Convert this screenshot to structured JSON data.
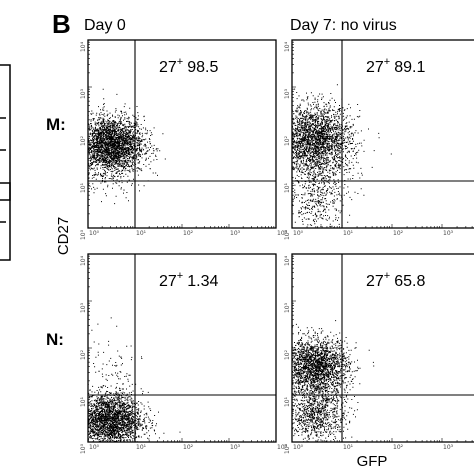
{
  "panel_label": "B",
  "column_titles": [
    "Day 0",
    "Day 7: no virus"
  ],
  "row_labels": [
    "M:",
    "N:"
  ],
  "y_axis_label": "CD27",
  "x_axis_label": "GFP",
  "ticks": [
    "10⁰",
    "10¹",
    "10²",
    "10³",
    "10⁴"
  ],
  "chart_data": [
    {
      "type": "scatter",
      "row": "M:",
      "column": "Day 0",
      "gate": "27",
      "gate_sup": "+",
      "percent": "98.5",
      "xlim": [
        1,
        10000
      ],
      "ylim": [
        1,
        10000
      ],
      "xscale": "log",
      "yscale": "log",
      "quadrant_x": 10,
      "quadrant_y": 10,
      "populations": [
        {
          "x_center": 3.0,
          "y_center": 60,
          "x_spread": 0.35,
          "y_spread": 0.3,
          "count": 2800
        },
        {
          "x_center": 3.0,
          "y_center": 30,
          "x_spread": 0.4,
          "y_spread": 0.45,
          "count": 200
        }
      ]
    },
    {
      "type": "scatter",
      "row": "M:",
      "column": "Day 7: no virus",
      "gate": "27",
      "gate_sup": "+",
      "percent": "89.1",
      "xlim": [
        1,
        10000
      ],
      "ylim": [
        1,
        10000
      ],
      "xscale": "log",
      "yscale": "log",
      "quadrant_x": 10,
      "quadrant_y": 10,
      "populations": [
        {
          "x_center": 3.0,
          "y_center": 80,
          "x_spread": 0.35,
          "y_spread": 0.35,
          "count": 2300
        },
        {
          "x_center": 3.0,
          "y_center": 15,
          "x_spread": 0.35,
          "y_spread": 0.4,
          "count": 400
        },
        {
          "x_center": 3.0,
          "y_center": 3,
          "x_spread": 0.3,
          "y_spread": 0.3,
          "count": 250
        }
      ]
    },
    {
      "type": "scatter",
      "row": "N:",
      "column": "Day 0",
      "gate": "27",
      "gate_sup": "+",
      "percent": "1.34",
      "xlim": [
        1,
        10000
      ],
      "ylim": [
        1,
        10000
      ],
      "xscale": "log",
      "yscale": "log",
      "quadrant_x": 10,
      "quadrant_y": 10,
      "populations": [
        {
          "x_center": 2.8,
          "y_center": 3,
          "x_spread": 0.35,
          "y_spread": 0.28,
          "count": 2600
        },
        {
          "x_center": 2.8,
          "y_center": 30,
          "x_spread": 0.35,
          "y_spread": 0.45,
          "count": 90
        }
      ]
    },
    {
      "type": "scatter",
      "row": "N:",
      "column": "Day 7: no virus",
      "gate": "27",
      "gate_sup": "+",
      "percent": "65.8",
      "xlim": [
        1,
        10000
      ],
      "ylim": [
        1,
        10000
      ],
      "xscale": "log",
      "yscale": "log",
      "quadrant_x": 10,
      "quadrant_y": 10,
      "populations": [
        {
          "x_center": 3.0,
          "y_center": 40,
          "x_spread": 0.32,
          "y_spread": 0.3,
          "count": 2200
        },
        {
          "x_center": 3.0,
          "y_center": 4,
          "x_spread": 0.3,
          "y_spread": 0.28,
          "count": 900
        }
      ]
    }
  ]
}
